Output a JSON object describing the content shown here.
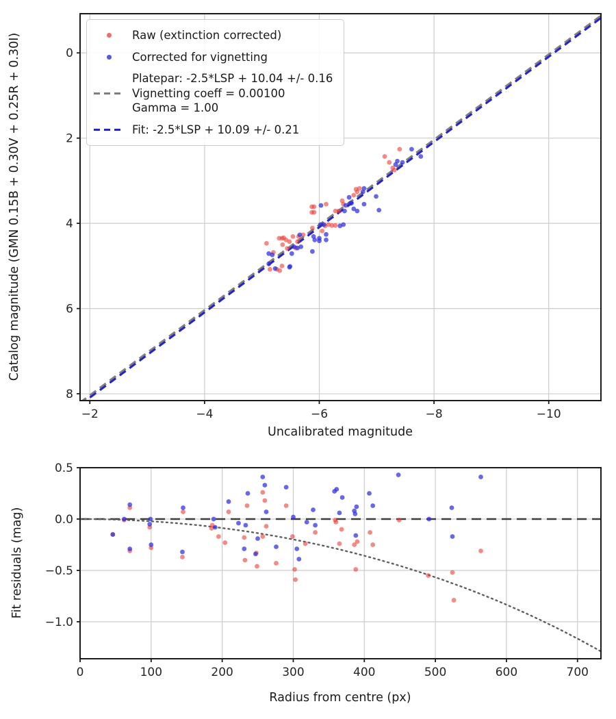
{
  "figure_background": "#ffffff",
  "chart_data": [
    {
      "type": "scatter",
      "xlabel": "Uncalibrated magnitude",
      "ylabel": "Catalog magnitude (GMN 0.15B + 0.30V + 0.25R + 0.30I)",
      "xlim": [
        -1.83,
        -10.91
      ],
      "ylim_bottom_top": [
        8.16,
        -0.92
      ],
      "xticks": {
        "values": [
          -2,
          -4,
          -6,
          -8,
          -10
        ],
        "labels": [
          "−2",
          "−4",
          "−6",
          "−8",
          "−10"
        ]
      },
      "yticks": {
        "values": [
          0,
          2,
          4,
          6,
          8
        ],
        "labels": [
          "0",
          "2",
          "4",
          "6",
          "8"
        ]
      },
      "grid": true,
      "legend_position": "upper-left",
      "series": {
        "raw": {
          "label": "Raw (extinction corrected)",
          "color": "#ee3b33",
          "opacity": 0.6,
          "marker_radius": 3.4,
          "points": [
            [
              -5.08,
              4.47
            ],
            [
              -5.14,
              5.08
            ],
            [
              -5.26,
              5.08
            ],
            [
              -5.31,
              5.11
            ],
            [
              -5.3,
              4.35
            ],
            [
              -5.35,
              4.35
            ],
            [
              -5.38,
              4.34
            ],
            [
              -5.42,
              4.39
            ],
            [
              -5.36,
              4.5
            ],
            [
              -5.48,
              4.43
            ],
            [
              -5.54,
              4.31
            ],
            [
              -5.44,
              4.59
            ],
            [
              -5.59,
              4.58
            ],
            [
              -5.35,
              5.0
            ],
            [
              -5.64,
              4.31
            ],
            [
              -5.72,
              4.27
            ],
            [
              -5.2,
              4.68
            ],
            [
              -5.62,
              4.43
            ],
            [
              -5.87,
              3.61
            ],
            [
              -5.91,
              3.61
            ],
            [
              -5.87,
              3.74
            ],
            [
              -5.91,
              3.74
            ],
            [
              -6.12,
              3.55
            ],
            [
              -6.28,
              3.71
            ],
            [
              -6.34,
              3.71
            ],
            [
              -6.16,
              4.03
            ],
            [
              -6.22,
              4.05
            ],
            [
              -6.28,
              4.05
            ],
            [
              -5.88,
              4.11
            ],
            [
              -6.1,
              4.06
            ],
            [
              -6.05,
              4.18
            ],
            [
              -6.4,
              3.47
            ],
            [
              -6.42,
              3.55
            ],
            [
              -6.6,
              3.34
            ],
            [
              -6.64,
              3.2
            ],
            [
              -6.66,
              3.26
            ],
            [
              -6.7,
              3.18
            ],
            [
              -7.14,
              2.43
            ],
            [
              -7.22,
              2.57
            ],
            [
              -7.28,
              2.7
            ],
            [
              -7.31,
              2.75
            ],
            [
              -7.4,
              2.26
            ]
          ]
        },
        "corrected": {
          "label": "Corrected for vignetting",
          "color": "#2d2de0",
          "opacity": 0.72,
          "marker_radius": 3.4,
          "points": [
            [
              -5.12,
              4.71
            ],
            [
              -5.18,
              4.74
            ],
            [
              -5.12,
              4.95
            ],
            [
              -5.23,
              5.06
            ],
            [
              -5.48,
              5.03
            ],
            [
              -5.49,
              5.01
            ],
            [
              -5.52,
              4.71
            ],
            [
              -5.56,
              4.55
            ],
            [
              -5.62,
              4.58
            ],
            [
              -5.68,
              4.55
            ],
            [
              -5.66,
              4.27
            ],
            [
              -5.9,
              4.31
            ],
            [
              -5.92,
              4.39
            ],
            [
              -5.88,
              4.66
            ],
            [
              -6.0,
              4.35
            ],
            [
              -6.0,
              4.41
            ],
            [
              -6.02,
              4.03
            ],
            [
              -6.08,
              4.03
            ],
            [
              -6.12,
              4.26
            ],
            [
              -6.12,
              4.39
            ],
            [
              -6.03,
              3.58
            ],
            [
              -6.36,
              4.06
            ],
            [
              -6.42,
              4.03
            ],
            [
              -6.44,
              3.71
            ],
            [
              -6.46,
              3.58
            ],
            [
              -6.56,
              3.53
            ],
            [
              -6.52,
              3.39
            ],
            [
              -6.54,
              3.53
            ],
            [
              -6.6,
              3.66
            ],
            [
              -6.66,
              3.71
            ],
            [
              -6.76,
              3.26
            ],
            [
              -6.78,
              3.18
            ],
            [
              -6.78,
              3.55
            ],
            [
              -6.99,
              3.37
            ],
            [
              -7.04,
              3.69
            ],
            [
              -7.33,
              2.62
            ],
            [
              -7.36,
              2.54
            ],
            [
              -7.45,
              2.57
            ],
            [
              -7.61,
              2.26
            ],
            [
              -7.77,
              2.43
            ]
          ]
        },
        "platepar_line": {
          "label_lines": [
            "Platepar: -2.5*LSP + 10.04 +/- 0.16",
            "Vignetting coeff = 0.00100",
            "Gamma = 1.00"
          ],
          "color": "#7f7f7f",
          "slope": 1,
          "intercept": 10.04,
          "dash": "11,7",
          "width": 3.4
        },
        "fit_line": {
          "label": "Fit: -2.5*LSP + 10.09 +/- 0.21",
          "color": "#2525cf",
          "slope": 1,
          "intercept": 10.09,
          "dash": "11,7",
          "width": 3.1
        }
      }
    },
    {
      "type": "scatter",
      "xlabel": "Radius from centre (px)",
      "ylabel": "Fit residuals (mag)",
      "xlim": [
        0,
        733
      ],
      "ylim_bottom_top": [
        -1.36,
        0.5
      ],
      "xticks": {
        "values": [
          0,
          100,
          200,
          300,
          400,
          500,
          600,
          700
        ],
        "labels": [
          "0",
          "100",
          "200",
          "300",
          "400",
          "500",
          "600",
          "700"
        ]
      },
      "yticks": {
        "values": [
          0.5,
          0,
          -0.5,
          -1
        ],
        "labels": [
          "0.5",
          "0.0",
          "−0.5",
          "−1.0"
        ]
      },
      "grid": true,
      "series": {
        "raw_residuals": {
          "color": "#ee3b33",
          "opacity": 0.6,
          "marker_radius": 3.4,
          "points": [
            [
              46,
              -0.15
            ],
            [
              70,
              0.11
            ],
            [
              62,
              -0.01
            ],
            [
              70,
              -0.31
            ],
            [
              98,
              -0.08
            ],
            [
              100,
              -0.28
            ],
            [
              145,
              0.07
            ],
            [
              144,
              -0.37
            ],
            [
              185,
              -0.09
            ],
            [
              186,
              -0.06
            ],
            [
              195,
              -0.17
            ],
            [
              204,
              -0.23
            ],
            [
              209,
              0.07
            ],
            [
              231,
              -0.18
            ],
            [
              232,
              -0.4
            ],
            [
              235,
              0.13
            ],
            [
              248,
              -0.33
            ],
            [
              249,
              -0.46
            ],
            [
              257,
              0.26
            ],
            [
              257,
              -0.17
            ],
            [
              260,
              0.18
            ],
            [
              262,
              -0.07
            ],
            [
              276,
              -0.43
            ],
            [
              290,
              0.13
            ],
            [
              299,
              -0.17
            ],
            [
              302,
              -0.49
            ],
            [
              303,
              -0.59
            ],
            [
              317,
              -0.24
            ],
            [
              331,
              -0.13
            ],
            [
              359,
              -0.01
            ],
            [
              360,
              -0.03
            ],
            [
              368,
              -0.1
            ],
            [
              365,
              -0.24
            ],
            [
              386,
              -0.25
            ],
            [
              390,
              -0.22
            ],
            [
              388,
              -0.49
            ],
            [
              408,
              -0.13
            ],
            [
              412,
              -0.25
            ],
            [
              449,
              -0.01
            ],
            [
              490,
              -0.55
            ],
            [
              524,
              -0.52
            ],
            [
              526,
              -0.79
            ],
            [
              564,
              -0.31
            ]
          ]
        },
        "corrected_residuals": {
          "color": "#2d2de0",
          "opacity": 0.72,
          "marker_radius": 3.4,
          "points": [
            [
              46,
              -0.15
            ],
            [
              70,
              0.14
            ],
            [
              62,
              0.0
            ],
            [
              70,
              -0.29
            ],
            [
              99,
              0.0
            ],
            [
              98,
              -0.05
            ],
            [
              100,
              -0.25
            ],
            [
              145,
              0.11
            ],
            [
              144,
              -0.32
            ],
            [
              188,
              0.0
            ],
            [
              190,
              -0.08
            ],
            [
              209,
              0.17
            ],
            [
              223,
              -0.04
            ],
            [
              231,
              -0.29
            ],
            [
              233,
              -0.06
            ],
            [
              236,
              0.25
            ],
            [
              247,
              -0.34
            ],
            [
              250,
              -0.19
            ],
            [
              257,
              0.41
            ],
            [
              260,
              0.33
            ],
            [
              262,
              0.07
            ],
            [
              276,
              -0.27
            ],
            [
              290,
              0.31
            ],
            [
              300,
              0.02
            ],
            [
              305,
              -0.29
            ],
            [
              308,
              -0.39
            ],
            [
              319,
              -0.03
            ],
            [
              328,
              0.09
            ],
            [
              331,
              -0.06
            ],
            [
              358,
              0.27
            ],
            [
              361,
              0.29
            ],
            [
              369,
              0.21
            ],
            [
              365,
              0.06
            ],
            [
              386,
              0.08
            ],
            [
              387,
              0.05
            ],
            [
              389,
              0.12
            ],
            [
              388,
              -0.16
            ],
            [
              407,
              0.25
            ],
            [
              412,
              0.13
            ],
            [
              448,
              0.43
            ],
            [
              491,
              0.0
            ],
            [
              523,
              0.11
            ],
            [
              524,
              -0.17
            ],
            [
              564,
              0.41
            ]
          ]
        },
        "zero_line": {
          "y": 0,
          "color": "#3d3d3d",
          "dash": "14,8",
          "width": 2.5
        },
        "vignetting_curve": {
          "coeff": 0.001,
          "gamma": 1.0,
          "color": "#5f5f5f",
          "dash": "2,5",
          "width": 2.4
        }
      }
    }
  ]
}
